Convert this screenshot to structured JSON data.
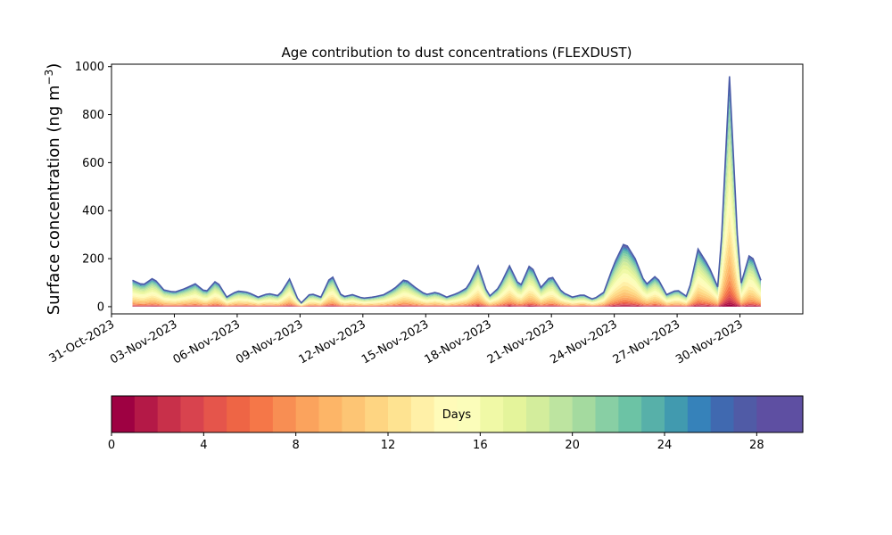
{
  "chart_data": [
    {
      "type": "area",
      "stacked": true,
      "title": "Age contribution to dust concentrations (FLEXDUST)",
      "ylabel_main": "Surface concentration (ng m",
      "ylabel_sup": "−3",
      "ylabel_close": ")",
      "xlabel": "",
      "x_start": "2023-11-01",
      "x_end": "2023-12-01",
      "xlim": [
        "2023-10-31",
        "2023-12-03"
      ],
      "ylim": [
        -30,
        1010
      ],
      "grid": false,
      "xticks": [
        "2023-10-31",
        "2023-11-03",
        "2023-11-06",
        "2023-11-09",
        "2023-11-12",
        "2023-11-15",
        "2023-11-18",
        "2023-11-21",
        "2023-11-24",
        "2023-11-27",
        "2023-11-30"
      ],
      "xtick_labels": [
        "31-Oct-2023",
        "03-Nov-2023",
        "06-Nov-2023",
        "09-Nov-2023",
        "12-Nov-2023",
        "15-Nov-2023",
        "18-Nov-2023",
        "21-Nov-2023",
        "24-Nov-2023",
        "27-Nov-2023",
        "30-Nov-2023"
      ],
      "yticks": [
        0,
        200,
        400,
        600,
        800,
        1000
      ],
      "ytick_labels": [
        "0",
        "200",
        "400",
        "600",
        "800",
        "1000"
      ],
      "total_concentration": {
        "x": [
          "2023-11-01",
          "2023-11-01 12:00",
          "2023-11-02",
          "2023-11-02 12:00",
          "2023-11-03",
          "2023-11-03 12:00",
          "2023-11-04",
          "2023-11-04 12:00",
          "2023-11-05",
          "2023-11-05 12:00",
          "2023-11-06",
          "2023-11-06 12:00",
          "2023-11-07",
          "2023-11-07 12:00",
          "2023-11-08",
          "2023-11-08 12:00",
          "2023-11-09",
          "2023-11-09 12:00",
          "2023-11-10",
          "2023-11-10 12:00",
          "2023-11-11",
          "2023-11-11 12:00",
          "2023-11-12",
          "2023-11-12 12:00",
          "2023-11-13",
          "2023-11-13 12:00",
          "2023-11-14",
          "2023-11-14 12:00",
          "2023-11-15",
          "2023-11-15 12:00",
          "2023-11-16",
          "2023-11-16 12:00",
          "2023-11-17",
          "2023-11-17 12:00",
          "2023-11-18",
          "2023-11-18 12:00",
          "2023-11-19",
          "2023-11-19 12:00",
          "2023-11-20",
          "2023-11-20 12:00",
          "2023-11-21",
          "2023-11-21 12:00",
          "2023-11-22",
          "2023-11-22 12:00",
          "2023-11-23",
          "2023-11-23 12:00",
          "2023-11-24",
          "2023-11-24 12:00",
          "2023-11-25",
          "2023-11-25 12:00",
          "2023-11-26",
          "2023-11-26 12:00",
          "2023-11-27",
          "2023-11-27 12:00",
          "2023-11-28",
          "2023-11-28 12:00",
          "2023-11-29",
          "2023-11-29 12:00",
          "2023-11-30",
          "2023-11-30 12:00",
          "2023-12-01"
        ],
        "y": [
          110,
          90,
          120,
          70,
          60,
          75,
          95,
          60,
          110,
          40,
          65,
          60,
          40,
          55,
          45,
          115,
          10,
          55,
          40,
          135,
          40,
          50,
          35,
          40,
          50,
          75,
          115,
          80,
          50,
          60,
          40,
          55,
          80,
          170,
          40,
          80,
          170,
          80,
          180,
          80,
          130,
          60,
          40,
          50,
          30,
          60,
          180,
          270,
          200,
          90,
          130,
          50,
          70,
          40,
          240,
          170,
          70,
          960,
          80,
          230,
          110
        ]
      }
    },
    {
      "type": "colorbar",
      "label": "Days",
      "range": [
        0,
        30
      ],
      "ticks": [
        0,
        4,
        8,
        12,
        16,
        20,
        24,
        28
      ],
      "tick_labels": [
        "0",
        "4",
        "8",
        "12",
        "16",
        "20",
        "24",
        "28"
      ],
      "n_bins": 30,
      "colormap": "Spectral",
      "colors": [
        "#9e0142",
        "#b41947",
        "#c8304a",
        "#d8434e",
        "#e5554b",
        "#ee6545",
        "#f57748",
        "#f88e53",
        "#fba35d",
        "#fdb567",
        "#fdc574",
        "#fed582",
        "#fee391",
        "#fff0a7",
        "#fffbb9",
        "#fbfdba",
        "#f0f9a6",
        "#e4f49b",
        "#d3ed9c",
        "#bde4a0",
        "#a4da9f",
        "#88cfa4",
        "#6cc3a5",
        "#57b0a9",
        "#419aaf",
        "#3682ba",
        "#4069b0",
        "#505ba6",
        "#5e4fa2",
        "#5e4fa2"
      ]
    }
  ]
}
